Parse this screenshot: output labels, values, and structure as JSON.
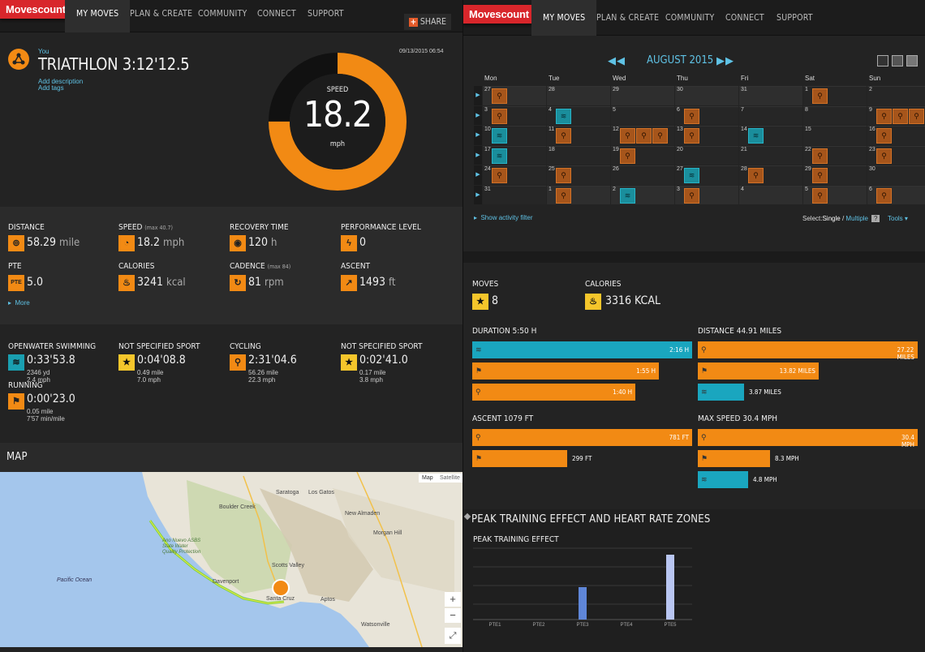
{
  "left": {
    "nav": {
      "logo": "Movescount",
      "items": [
        "MY MOVES",
        "PLAN & CREATE",
        "COMMUNITY",
        "CONNECT",
        "SUPPORT"
      ],
      "share": "SHARE"
    },
    "header": {
      "user": "You",
      "title": "TRIATHLON 3:12'12.5",
      "date": "09/13/2015 06:54",
      "add_description": "Add description",
      "add_tags": "Add tags"
    },
    "gauge": {
      "label": "SPEED",
      "value": "18.2",
      "unit": "mph",
      "fill_fraction": 0.75
    },
    "stats": [
      {
        "label": "DISTANCE",
        "note": "",
        "icon": "distance-icon",
        "glyph": "⊚",
        "value": "58.29",
        "unit": "mile"
      },
      {
        "label": "SPEED",
        "note": "(max 40.7)",
        "icon": "speedometer-icon",
        "glyph": "◔",
        "value": "18.2",
        "unit": "mph"
      },
      {
        "label": "RECOVERY TIME",
        "note": "",
        "icon": "recovery-icon",
        "glyph": "◉",
        "value": "120",
        "unit": "h"
      },
      {
        "label": "PERFORMANCE LEVEL",
        "note": "",
        "icon": "lightning-icon",
        "glyph": "ϟ",
        "value": "0",
        "unit": ""
      },
      {
        "label": "PTE",
        "note": "",
        "icon": "pte-icon",
        "glyph": "PTE",
        "value": "5.0",
        "unit": ""
      },
      {
        "label": "CALORIES",
        "note": "",
        "icon": "flame-icon",
        "glyph": "♨",
        "value": "3241",
        "unit": "kcal"
      },
      {
        "label": "CADENCE",
        "note": "(max 84)",
        "icon": "cadence-icon",
        "glyph": "↻",
        "value": "81",
        "unit": "rpm"
      },
      {
        "label": "ASCENT",
        "note": "",
        "icon": "ascent-icon",
        "glyph": "↗",
        "value": "1493",
        "unit": "ft"
      }
    ],
    "more": "More",
    "sports": [
      {
        "label": "OPENWATER SWIMMING",
        "icon": "swim-icon",
        "glyph": "≋",
        "color": "teal",
        "time": "0:33'53.8",
        "line1": "2346 yd",
        "line2": "2.4 mph"
      },
      {
        "label": "NOT SPECIFIED SPORT",
        "icon": "star-icon",
        "glyph": "★",
        "color": "yel",
        "time": "0:04'08.8",
        "line1": "0.49 mile",
        "line2": "7.0 mph"
      },
      {
        "label": "CYCLING",
        "icon": "bike-icon",
        "glyph": "⚲",
        "color": "orange",
        "time": "2:31'04.6",
        "line1": "56.26 mile",
        "line2": "22.3 mph"
      },
      {
        "label": "NOT SPECIFIED SPORT",
        "icon": "star-icon",
        "glyph": "★",
        "color": "yel",
        "time": "0:02'41.0",
        "line1": "0.17 mile",
        "line2": "3.8 mph"
      },
      {
        "label": "RUNNING",
        "icon": "shoe-icon",
        "glyph": "⚑",
        "color": "orange",
        "time": "0:00'23.0",
        "line1": "0.05 mile",
        "line2": "7'57 min/mile"
      }
    ],
    "map": {
      "title": "MAP",
      "toggle_map": "Map",
      "toggle_satellite": "Satellite",
      "zoom_in": "+",
      "zoom_out": "−",
      "fullscreen": "⤢",
      "places": [
        "Saratoga",
        "Los Gatos",
        "Boulder Creek",
        "New Almaden",
        "Morgan Hill",
        "Scotts Valley",
        "Davenport",
        "Santa Cruz",
        "Aptos",
        "Watsonville",
        "Pacific Ocean",
        "Ano Nuevo ASBS State Water Quality Protection"
      ]
    }
  },
  "right": {
    "nav": {
      "logo": "Movescount",
      "items": [
        "MY MOVES",
        "PLAN & CREATE",
        "COMMUNITY",
        "CONNECT",
        "SUPPORT"
      ]
    },
    "calendar": {
      "month": "AUGUST 2015",
      "days": [
        "Mon",
        "Tue",
        "Wed",
        "Thu",
        "Fri",
        "Sat",
        "Sun"
      ],
      "weeks": [
        [
          "27",
          "28",
          "29",
          "30",
          "31",
          "1",
          "2"
        ],
        [
          "3",
          "4",
          "5",
          "6",
          "7",
          "8",
          "9"
        ],
        [
          "10",
          "11",
          "12",
          "13",
          "14",
          "15",
          "16"
        ],
        [
          "17",
          "18",
          "19",
          "20",
          "21",
          "22",
          "23"
        ],
        [
          "24",
          "25",
          "26",
          "27",
          "28",
          "29",
          "30"
        ],
        [
          "31",
          "1",
          "2",
          "3",
          "4",
          "5",
          "6"
        ]
      ],
      "filter": "Show activity filter",
      "select_label": "Select:",
      "select_single": "Single",
      "select_sep": "/",
      "select_multiple": "Multiple",
      "help": "?",
      "tools": "Tools"
    },
    "summary": {
      "moves_label": "MOVES",
      "moves_value": "8",
      "calories_label": "CALORIES",
      "calories_value": "3316 KCAL"
    },
    "duration": {
      "title": "DURATION 5:50 H",
      "bars": [
        {
          "value": "2:16 H",
          "frac": 1.0,
          "color": "teal",
          "icon": "swim-icon"
        },
        {
          "value": "1:55 H",
          "frac": 0.85,
          "color": "orange",
          "icon": "shoe-icon"
        },
        {
          "value": "1:40 H",
          "frac": 0.74,
          "color": "orange",
          "icon": "bike-icon"
        }
      ]
    },
    "distance": {
      "title": "DISTANCE 44.91 MILES",
      "bars": [
        {
          "value": "27.22 MILES",
          "frac": 1.0,
          "color": "orange",
          "icon": "bike-icon"
        },
        {
          "value": "13.82 MILES",
          "frac": 0.55,
          "color": "orange",
          "icon": "shoe-icon"
        },
        {
          "value": "3.87 MILES",
          "frac": 0.21,
          "color": "teal",
          "icon": "swim-icon"
        }
      ]
    },
    "ascent": {
      "title": "ASCENT 1079 FT",
      "bars": [
        {
          "value": "781 FT",
          "frac": 1.0,
          "color": "orange",
          "icon": "bike-icon"
        },
        {
          "value": "299 FT",
          "frac": 0.43,
          "color": "orange",
          "icon": "shoe-icon"
        }
      ]
    },
    "maxspeed": {
      "title": "MAX SPEED 30.4 MPH",
      "bars": [
        {
          "value": "30.4 MPH",
          "frac": 1.0,
          "color": "orange",
          "icon": "bike-icon"
        },
        {
          "value": "8.3 MPH",
          "frac": 0.33,
          "color": "orange",
          "icon": "shoe-icon"
        },
        {
          "value": "4.8 MPH",
          "frac": 0.23,
          "color": "teal",
          "icon": "swim-icon"
        }
      ]
    },
    "pte_section": {
      "title": "PEAK TRAINING EFFECT AND HEART RATE ZONES",
      "chart_title": "PEAK TRAINING EFFECT"
    }
  },
  "chart_data": {
    "type": "bar",
    "title": "PEAK TRAINING EFFECT",
    "categories": [
      "PTE1",
      "PTE2",
      "PTE3",
      "PTE4",
      "PTE5"
    ],
    "values": [
      0,
      0,
      1,
      0,
      2
    ],
    "ylim": [
      0,
      2.3
    ],
    "grid": true
  }
}
